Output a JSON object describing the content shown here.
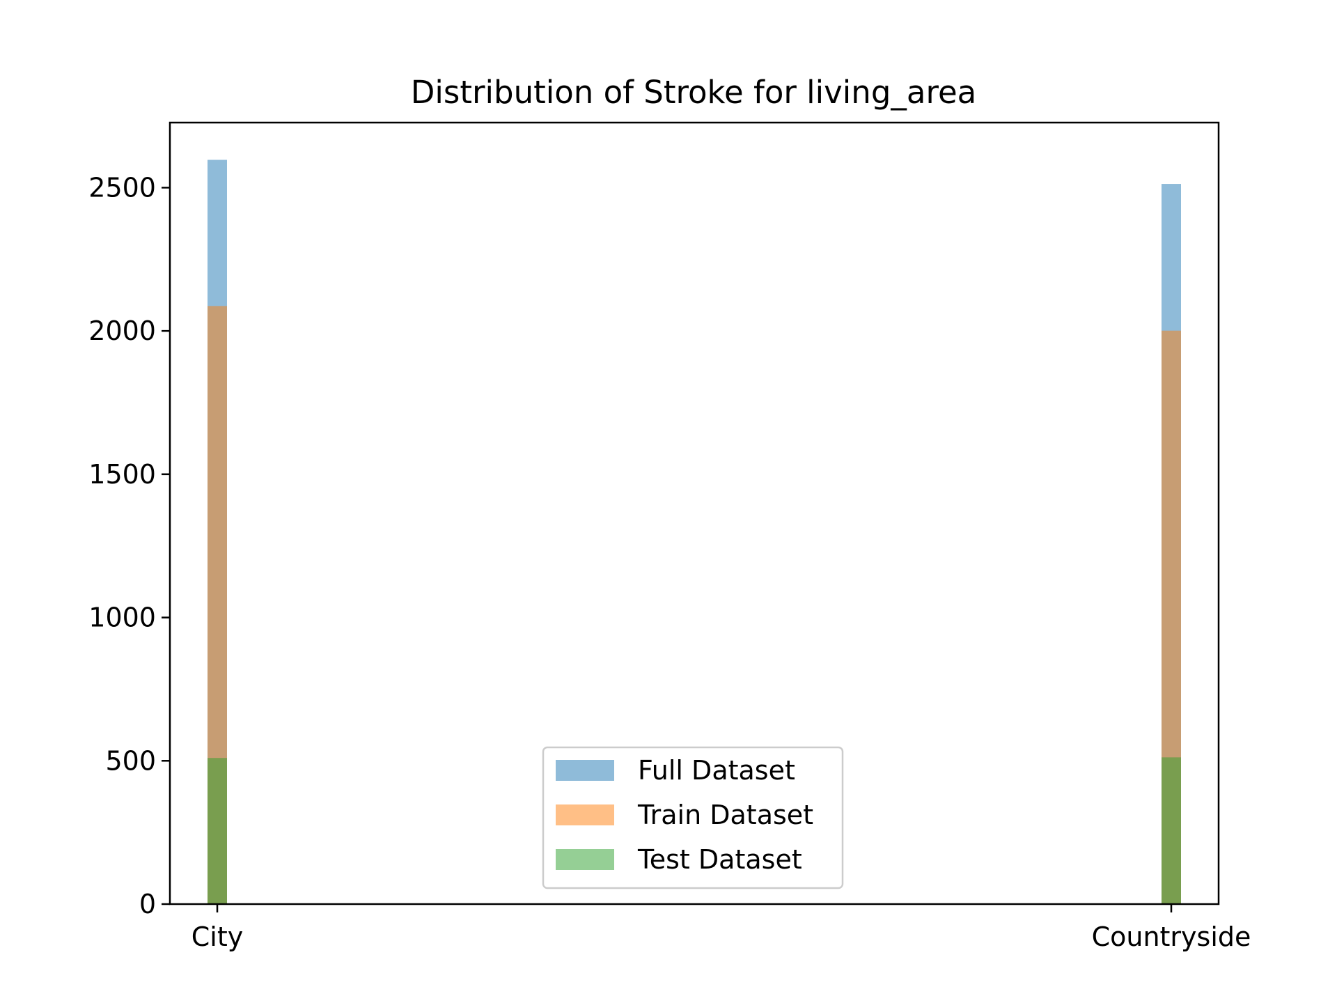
{
  "chart_data": {
    "type": "bar",
    "title": "Distribution of Stroke for living_area",
    "xlabel": "",
    "ylabel": "",
    "categories": [
      "City",
      "Countryside"
    ],
    "series": [
      {
        "name": "Full Dataset",
        "values": [
          2597,
          2513
        ],
        "color": "#1f77b4",
        "opacity": 0.5
      },
      {
        "name": "Train Dataset",
        "values": [
          2087,
          2001
        ],
        "color": "#ff7f0e",
        "opacity": 0.5
      },
      {
        "name": "Test Dataset",
        "values": [
          510,
          512
        ],
        "color": "#2ca02c",
        "opacity": 0.5
      }
    ],
    "ylim": [
      0,
      2727
    ],
    "yticks": [
      0,
      500,
      1000,
      1500,
      2000,
      2500
    ],
    "grid": false,
    "legend_position": "lower-center"
  }
}
